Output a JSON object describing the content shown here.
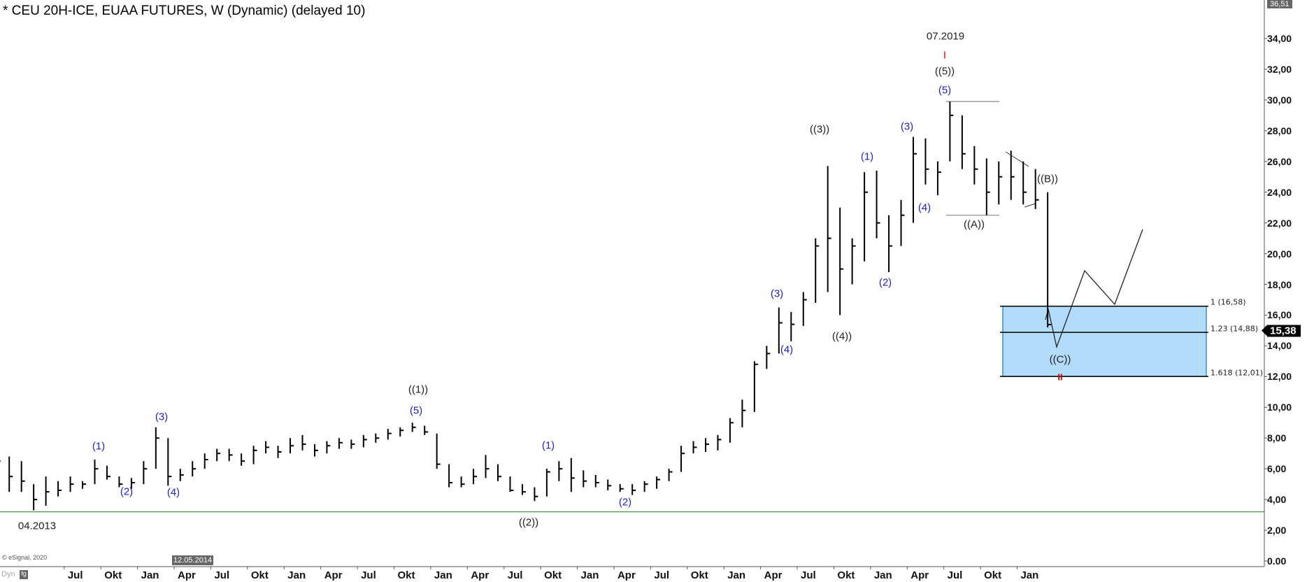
{
  "header": {
    "title": "* CEU 20H-ICE, EUAA FUTURES, W (Dynamic) (delayed 10)"
  },
  "footer": {
    "copyright": "© eSignal, 2020",
    "mode": "Dyn",
    "mode_icon": "fg"
  },
  "colors": {
    "bars": "#000000",
    "support_line": "#2e8b2e",
    "target_box": "#b3dcfb",
    "target_box_border": "#3a8fd0",
    "wave_minor": "#2222cc",
    "wave_major": "#222222",
    "marker": "#e00000"
  },
  "chart_data": {
    "type": "ohlc-bar",
    "title": "* CEU 20H-ICE, EUAA FUTURES, W (Dynamic) (delayed 10)",
    "ylim": [
      0,
      36.51
    ],
    "grid": false,
    "y_ticks": [
      "0.00",
      "2,00",
      "4,00",
      "6,00",
      "8,00",
      "10,00",
      "12,00",
      "14,00",
      "16,00",
      "18,00",
      "20,00",
      "22,00",
      "24,00",
      "26,00",
      "28,00",
      "30,00",
      "32,00",
      "34,00"
    ],
    "x_ticks": [
      "Jul",
      "Okt",
      "Jan",
      "Apr",
      "Jul",
      "Okt",
      "Jan",
      "Apr",
      "Jul",
      "Okt",
      "Jan",
      "Apr",
      "Jul",
      "Okt",
      "Jan",
      "Apr",
      "Jul",
      "Okt",
      "Jan",
      "Apr",
      "Jul",
      "Okt",
      "Jan",
      "Apr",
      "Jul",
      "Okt",
      "Jan"
    ],
    "x_tick_start": "2013-07",
    "cursor_date": "12.05.2014",
    "last_price": "15,38",
    "top_price": "36,51",
    "start_month": "2013-01",
    "bars": [
      [
        8,
        5.5,
        6.5
      ],
      [
        6.8,
        4.5,
        5.5
      ],
      [
        6.5,
        4.5,
        5.2
      ],
      [
        5,
        3.3,
        4
      ],
      [
        5.5,
        3.6,
        4.5
      ],
      [
        5.2,
        4.2,
        4.6
      ],
      [
        5.5,
        4.5,
        5
      ],
      [
        5.2,
        4.7,
        5
      ],
      [
        6.6,
        5,
        6
      ],
      [
        6.2,
        5.3,
        5.5
      ],
      [
        5.5,
        4.8,
        5
      ],
      [
        5.4,
        4.7,
        5.1
      ],
      [
        6.5,
        5,
        6
      ],
      [
        8.7,
        6,
        8
      ],
      [
        8,
        4.9,
        5.5
      ],
      [
        6,
        5.2,
        5.6
      ],
      [
        6.5,
        5.5,
        6
      ],
      [
        7,
        6,
        6.6
      ],
      [
        7.3,
        6.5,
        7
      ],
      [
        7.3,
        6.5,
        6.9
      ],
      [
        7,
        6.2,
        6.5
      ],
      [
        7.5,
        6.3,
        7.2
      ],
      [
        7.8,
        7,
        7.4
      ],
      [
        7.5,
        6.7,
        7.1
      ],
      [
        8,
        7,
        7.5
      ],
      [
        8.2,
        7.2,
        7.6
      ],
      [
        7.6,
        6.8,
        7.2
      ],
      [
        7.8,
        7,
        7.5
      ],
      [
        8,
        7.3,
        7.7
      ],
      [
        7.9,
        7.3,
        7.6
      ],
      [
        8.2,
        7.4,
        7.9
      ],
      [
        8.3,
        7.7,
        8
      ],
      [
        8.6,
        7.9,
        8.3
      ],
      [
        8.7,
        8.1,
        8.5
      ],
      [
        9,
        8.4,
        8.7
      ],
      [
        8.8,
        8.2,
        8.4
      ],
      [
        8.3,
        6,
        6.3
      ],
      [
        6.3,
        4.8,
        5.1
      ],
      [
        5.5,
        4.8,
        5
      ],
      [
        6,
        5,
        5.5
      ],
      [
        6.9,
        5.4,
        6
      ],
      [
        6.3,
        5.2,
        5.5
      ],
      [
        5.5,
        4.5,
        4.6
      ],
      [
        5,
        4.3,
        4.5
      ],
      [
        4.8,
        3.9,
        4.2
      ],
      [
        6,
        4.2,
        5.8
      ],
      [
        6.5,
        5.2,
        6
      ],
      [
        6.7,
        4.5,
        5.4
      ],
      [
        5.9,
        4.8,
        5.2
      ],
      [
        5.6,
        4.8,
        5.1
      ],
      [
        5.3,
        4.6,
        4.9
      ],
      [
        5,
        4.5,
        4.7
      ],
      [
        5,
        4.3,
        4.6
      ],
      [
        5.2,
        4.5,
        5
      ],
      [
        5.5,
        4.7,
        5.3
      ],
      [
        6,
        5.2,
        5.8
      ],
      [
        7.5,
        5.8,
        7
      ],
      [
        7.8,
        7,
        7.4
      ],
      [
        8,
        7.1,
        7.6
      ],
      [
        8.2,
        7.2,
        7.9
      ],
      [
        9.3,
        7.7,
        9
      ],
      [
        10.5,
        8.7,
        9.8
      ],
      [
        13,
        9.7,
        12.8
      ],
      [
        14,
        12.5,
        13.5
      ],
      [
        16.5,
        13.5,
        15.5
      ],
      [
        16.2,
        14.3,
        15.4
      ],
      [
        17.5,
        15.3,
        17
      ],
      [
        21,
        16.8,
        20.5
      ],
      [
        25.7,
        17.5,
        21
      ],
      [
        23,
        16,
        19
      ],
      [
        21,
        18,
        20.5
      ],
      [
        25.3,
        19.5,
        24
      ],
      [
        25.4,
        21,
        22
      ],
      [
        22.5,
        18.8,
        20.5
      ],
      [
        23.5,
        20.5,
        22.5
      ],
      [
        27.6,
        22,
        26.5
      ],
      [
        27.5,
        24.5,
        25.5
      ],
      [
        26,
        23.8,
        25.3
      ],
      [
        29.9,
        26,
        29
      ],
      [
        29,
        25.5,
        26.5
      ],
      [
        27,
        24.5,
        25.5
      ],
      [
        26.2,
        22.5,
        24
      ],
      [
        26,
        23.2,
        25
      ],
      [
        26.7,
        23.5,
        25
      ],
      [
        26,
        23.2,
        24
      ],
      [
        25.5,
        22.9,
        23.5
      ],
      [
        24,
        15.2,
        15.38
      ]
    ],
    "support_level": 3.2,
    "high_line": 29.9,
    "wave_a_line": 22.5,
    "fib_levels": [
      {
        "ratio": "1",
        "value": 16.58,
        "label": "1 (16,58)"
      },
      {
        "ratio": "1.23",
        "value": 14.88,
        "label": "1.23 (14,88)"
      },
      {
        "ratio": "1.618",
        "value": 12.01,
        "label": "1.618 (12,01)"
      }
    ],
    "annotations": {
      "date_top": "07.2019",
      "date_bottom": "04.2013",
      "marker_i": "I",
      "marker_ii": "II",
      "w5_major": "((5))",
      "w5_top": "(5)",
      "w3_major": "((3))",
      "w1_c": "(1)",
      "w3_c": "(3)",
      "w4_c": "(4)",
      "wA": "((A))",
      "wB": "((B))",
      "wC": "((C))",
      "w2_c": "(2)",
      "w3_b": "(3)",
      "w4_b": "(4)",
      "w4_major": "((4))",
      "w1_major": "((1))",
      "w5_a": "(5)",
      "w1_a": "(1)",
      "w2_a": "(2)",
      "w3_a": "(3)",
      "w4_a": "(4)",
      "w1_b": "(1)",
      "w2_b": "(2)",
      "w2_major": "((2))"
    }
  }
}
